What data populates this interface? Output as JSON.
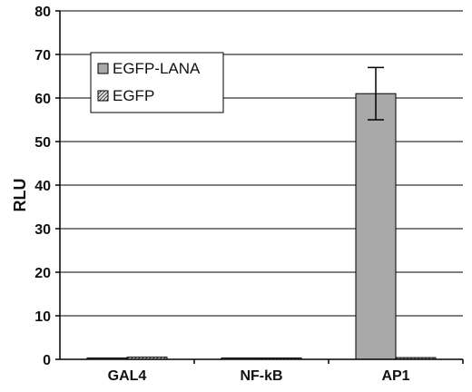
{
  "chart_data": {
    "type": "bar",
    "title": "",
    "xlabel": "",
    "ylabel": "RLU",
    "ylim": [
      0,
      80
    ],
    "yticks": [
      0,
      10,
      20,
      30,
      40,
      50,
      60,
      70,
      80
    ],
    "grid": "horizontal",
    "legend_position": "top-left",
    "categories": [
      "GAL4",
      "NF-kB",
      "AP1"
    ],
    "series": [
      {
        "name": "EGFP-LANA",
        "color": "#a9a9a9",
        "pattern": "solid",
        "values": [
          0.3,
          0.2,
          61
        ],
        "error": [
          0,
          0,
          6
        ]
      },
      {
        "name": "EGFP",
        "color": "#d0d0d0",
        "pattern": "hatched",
        "values": [
          0.5,
          0.2,
          0.4
        ],
        "error": [
          0,
          0,
          0
        ]
      }
    ]
  }
}
